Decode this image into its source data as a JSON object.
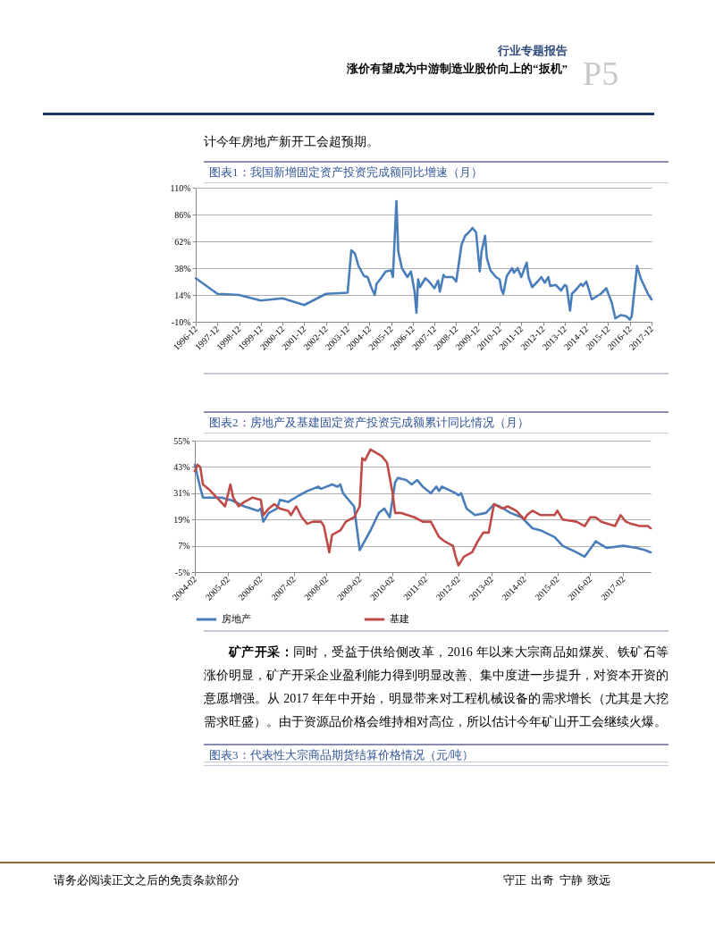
{
  "chart_data": [
    {
      "type": "line",
      "title": "图表1：我国新增固定资产投资完成额同比增速（月）",
      "series": [
        {
          "color": "#4a7ebb",
          "x": [
            "1996-12",
            "1997-12",
            "1998-12",
            "1999-12",
            "2000-12",
            "2001-12",
            "2002-12",
            "2003-12",
            "2004-02",
            "2004-04",
            "2004-06",
            "2004-09",
            "2004-11",
            "2005-01",
            "2005-03",
            "2005-04",
            "2005-06",
            "2005-09",
            "2005-12",
            "2006-01",
            "2006-03",
            "2006-04",
            "2006-06",
            "2006-09",
            "2006-11",
            "2007-01",
            "2007-02",
            "2007-03",
            "2007-04",
            "2007-07",
            "2007-09",
            "2007-12",
            "2008-02",
            "2008-03",
            "2008-05",
            "2008-06",
            "2008-10",
            "2008-12",
            "2009-03",
            "2009-05",
            "2009-07",
            "2009-09",
            "2009-11",
            "2010-01",
            "2010-02",
            "2010-04",
            "2010-05",
            "2010-07",
            "2010-10",
            "2010-12",
            "2011-01",
            "2011-02",
            "2011-04",
            "2011-07",
            "2011-08",
            "2011-10",
            "2011-12",
            "2012-03",
            "2012-04",
            "2012-06",
            "2012-09",
            "2012-11",
            "2013-01",
            "2013-03",
            "2013-04",
            "2013-07",
            "2013-10",
            "2013-12",
            "2014-01",
            "2014-03",
            "2014-04",
            "2014-07",
            "2014-09",
            "2014-10",
            "2014-12",
            "2015-03",
            "2015-04",
            "2015-08",
            "2015-11",
            "2016-02",
            "2016-04",
            "2016-07",
            "2016-10",
            "2016-12",
            "2017-01",
            "2017-04",
            "2017-06",
            "2017-10",
            "2017-12"
          ],
          "values": [
            29,
            15,
            14,
            9,
            11,
            5,
            15,
            16,
            54,
            51,
            40,
            31,
            30,
            21,
            14,
            24,
            28,
            35,
            36,
            30,
            98,
            53,
            38,
            30,
            35,
            17,
            -2,
            28,
            21,
            29,
            26,
            20,
            27,
            17,
            32,
            30,
            30,
            26,
            59,
            67,
            70,
            74,
            70,
            35,
            53,
            67,
            47,
            36,
            30,
            28,
            19,
            15,
            31,
            38,
            34,
            38,
            30,
            43,
            30,
            21,
            26,
            30,
            25,
            30,
            22,
            23,
            18,
            23,
            22,
            0,
            15,
            20,
            24,
            22,
            26,
            10,
            11,
            15,
            20,
            7,
            -7,
            -4,
            -5,
            -8,
            -5,
            40,
            29,
            15,
            10
          ]
        }
      ],
      "xlim": [
        "1996-12",
        "2017-12"
      ],
      "xticks": [
        "1996-12",
        "1997-12",
        "1998-12",
        "1999-12",
        "2000-12",
        "2001-12",
        "2002-12",
        "2003-12",
        "2004-12",
        "2005-12",
        "2006-12",
        "2007-12",
        "2008-12",
        "2009-12",
        "2010-12",
        "2011-12",
        "2012-12",
        "2013-12",
        "2014-12",
        "2015-12",
        "2016-12",
        "2017-12"
      ],
      "ylim": [
        -10,
        110
      ],
      "yticks": [
        {
          "value": -10,
          "label": "-10%"
        },
        {
          "value": 14,
          "label": "14%"
        },
        {
          "value": 38,
          "label": "38%"
        },
        {
          "value": 62,
          "label": "62%"
        },
        {
          "value": 86,
          "label": "86%"
        },
        {
          "value": 110,
          "label": "110%"
        }
      ],
      "grid": "y"
    },
    {
      "type": "line",
      "title": "图表2：房地产及基建固定资产投资完成额累计同比情况（月）",
      "series": [
        {
          "name": "房地产",
          "color": "#4a7ebb",
          "x": [
            "2004-02",
            "2004-04",
            "2004-05",
            "2004-06",
            "2004-12",
            "2005-02",
            "2005-03",
            "2005-08",
            "2006-01",
            "2006-02",
            "2006-03",
            "2006-05",
            "2006-08",
            "2006-09",
            "2006-12",
            "2007-04",
            "2007-07",
            "2007-11",
            "2007-12",
            "2008-04",
            "2008-06",
            "2008-07",
            "2008-08",
            "2008-12",
            "2009-02",
            "2009-06",
            "2009-09",
            "2009-11",
            "2010-01",
            "2010-03",
            "2010-04",
            "2010-07",
            "2010-09",
            "2010-11",
            "2011-01",
            "2011-04",
            "2011-06",
            "2011-07",
            "2011-08",
            "2012-01",
            "2012-02",
            "2012-03",
            "2012-05",
            "2012-08",
            "2012-12",
            "2013-03",
            "2013-05",
            "2013-09",
            "2014-01",
            "2014-05",
            "2014-08",
            "2015-01",
            "2015-04",
            "2015-09",
            "2015-12",
            "2016-04",
            "2016-08",
            "2017-02",
            "2017-07",
            "2017-10",
            "2017-12"
          ],
          "values": [
            44,
            33.5,
            29,
            29,
            29,
            28,
            28,
            25,
            23,
            24,
            18,
            22,
            24,
            28,
            27,
            30,
            32,
            34,
            33,
            35,
            34,
            35,
            31,
            25,
            5,
            14,
            22,
            24,
            20,
            36,
            38,
            37,
            35,
            37,
            34,
            31,
            34,
            32,
            34,
            31,
            30,
            31,
            24,
            21,
            22,
            26,
            25,
            22,
            20,
            15,
            14,
            11,
            7,
            4,
            2,
            9,
            6,
            7,
            6,
            5,
            4
          ]
        },
        {
          "name": "基建",
          "color": "#be4b48",
          "x": [
            "2004-02",
            "2004-03",
            "2004-04",
            "2004-05",
            "2004-07",
            "2004-10",
            "2005-01",
            "2005-03",
            "2005-04",
            "2005-06",
            "2005-08",
            "2005-11",
            "2006-02",
            "2006-03",
            "2006-05",
            "2006-07",
            "2006-09",
            "2006-12",
            "2007-01",
            "2007-03",
            "2007-05",
            "2007-07",
            "2007-09",
            "2007-12",
            "2008-01",
            "2008-03",
            "2008-04",
            "2008-07",
            "2008-09",
            "2008-12",
            "2009-02",
            "2009-03",
            "2009-04",
            "2009-06",
            "2009-10",
            "2009-12",
            "2010-02",
            "2010-03",
            "2010-05",
            "2010-10",
            "2011-01",
            "2011-04",
            "2011-07",
            "2011-09",
            "2011-12",
            "2012-01",
            "2012-02",
            "2012-04",
            "2012-07",
            "2012-09",
            "2012-11",
            "2013-01",
            "2013-03",
            "2013-06",
            "2013-08",
            "2013-11",
            "2014-02",
            "2014-03",
            "2014-05",
            "2014-08",
            "2014-10",
            "2015-01",
            "2015-02",
            "2015-04",
            "2015-09",
            "2015-12",
            "2016-02",
            "2016-04",
            "2016-06",
            "2016-11",
            "2017-01",
            "2017-03",
            "2017-05",
            "2017-08",
            "2017-11",
            "2017-12"
          ],
          "values": [
            41,
            44,
            43,
            35,
            33,
            29,
            25,
            35,
            29,
            25,
            27,
            29,
            28,
            21,
            24,
            26,
            24,
            23,
            21,
            25,
            20,
            17,
            18,
            18,
            16,
            4,
            12,
            14,
            18,
            20,
            25,
            47,
            46,
            51,
            48,
            45,
            31,
            22,
            22,
            20,
            18,
            18,
            11,
            9,
            7,
            2,
            -2,
            2,
            4,
            9,
            13,
            13,
            26,
            24,
            25,
            23,
            19,
            21,
            23,
            21,
            21,
            21,
            23,
            19,
            18,
            16,
            20,
            20,
            18,
            16,
            21,
            18,
            17,
            16,
            16,
            15
          ]
        }
      ],
      "xlim": [
        "2004-02",
        "2017-12"
      ],
      "xticks": [
        "2004-02",
        "2005-02",
        "2006-02",
        "2007-02",
        "2008-02",
        "2009-02",
        "2010-02",
        "2011-02",
        "2012-02",
        "2013-02",
        "2014-02",
        "2015-02",
        "2016-02",
        "2017-02"
      ],
      "ylim": [
        -5,
        55
      ],
      "yticks": [
        {
          "value": -5,
          "label": "-5%"
        },
        {
          "value": 7,
          "label": "7%"
        },
        {
          "value": 19,
          "label": "19%"
        },
        {
          "value": 31,
          "label": "31%"
        },
        {
          "value": 43,
          "label": "43%"
        },
        {
          "value": 55,
          "label": "55%"
        }
      ],
      "grid": "y",
      "legend": "bottom"
    },
    {
      "type": "other",
      "title": "图表3：代表性大宗商品期货结算价格情况（元/吨）",
      "annotations": [
        "行业专题报告",
        "涨价有望成为中游制造业股价向上的“扳机”",
        "P5",
        "计今年房地产新开工会超预期。",
        "矿产开采：",
        "同时，受益于供给侧改革，2016 年以来大宗商品如煤炭、铁矿石等涨价明显，矿产开采企业盈利能力得到明显改善、集中度进一步提升，对资本开资的意愿增强。从 2017 年年中开始，明显带来对工程机械设备的需求增长（尤其是大挖需求旺盛）。由于资源品价格会维持相对高位，所以估计今年矿山开工会继续火爆。",
        "请务必阅读正文之后的免责条款部分",
        "守正 出奇 宁静 致远"
      ]
    }
  ]
}
